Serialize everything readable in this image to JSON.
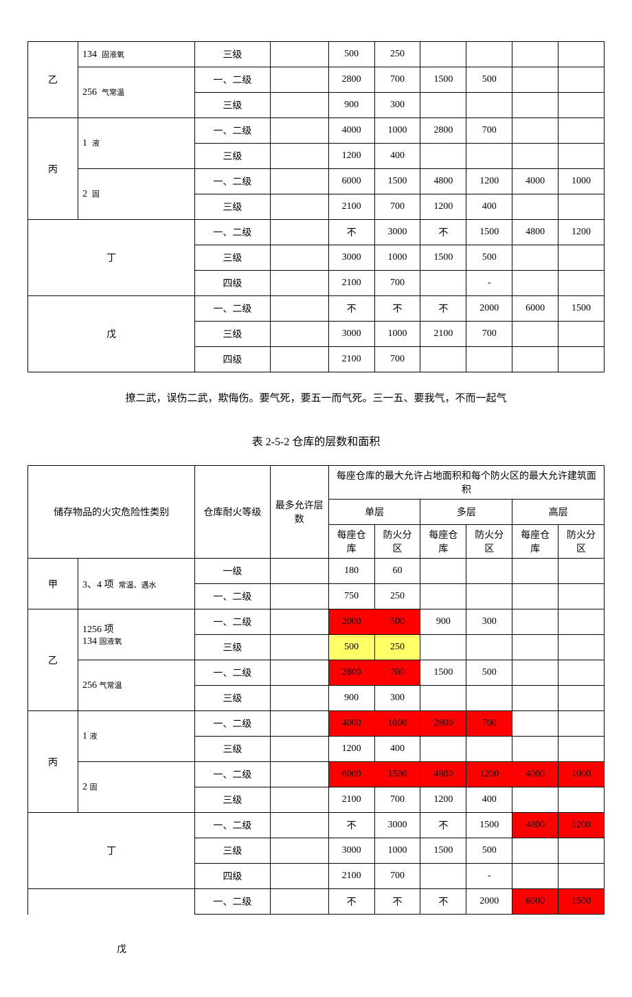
{
  "labels": {
    "yi": "乙",
    "bing": "丙",
    "ding": "丁",
    "wu": "戊",
    "jia": "甲"
  },
  "sub": {
    "s134": "134",
    "s134_sm": "固液氧",
    "s256": "256",
    "s256_sm": "气常温",
    "s1": "1",
    "s1_sm": "液",
    "s2": "2",
    "s2_sm": "固",
    "s34": "3、4 项",
    "s34_sm": "常温、遇水",
    "s1256": "1256 项"
  },
  "grade": {
    "g12": "一、二级",
    "g1": "一级",
    "g3": "三级",
    "g4": "四级"
  },
  "cell": {
    "bu": "不",
    "dash": "-"
  },
  "t1": {
    "r1": [
      "500",
      "250",
      "",
      "",
      "",
      ""
    ],
    "r2": [
      "2800",
      "700",
      "1500",
      "500",
      "",
      ""
    ],
    "r3": [
      "900",
      "300",
      "",
      "",
      "",
      ""
    ],
    "r4": [
      "4000",
      "1000",
      "2800",
      "700",
      "",
      ""
    ],
    "r5": [
      "1200",
      "400",
      "",
      "",
      "",
      ""
    ],
    "r6": [
      "6000",
      "1500",
      "4800",
      "1200",
      "4000",
      "1000"
    ],
    "r7": [
      "2100",
      "700",
      "1200",
      "400",
      "",
      ""
    ],
    "r8": [
      "不",
      "3000",
      "不",
      "1500",
      "4800",
      "1200"
    ],
    "r9": [
      "3000",
      "1000",
      "1500",
      "500",
      "",
      ""
    ],
    "r10": [
      "2100",
      "700",
      "",
      "-",
      "",
      ""
    ],
    "r11": [
      "不",
      "不",
      "不",
      "2000",
      "6000",
      "1500"
    ],
    "r12": [
      "3000",
      "1000",
      "2100",
      "700",
      "",
      ""
    ],
    "r13": [
      "2100",
      "700",
      "",
      "",
      "",
      ""
    ]
  },
  "note_text": "撩二武，误伤二武，欺侮伤。要气死，要五一而气死。三一五、要我气，不而一起气",
  "caption_text": "表 2-5-2  仓库的层数和面积",
  "hdr": {
    "class": "储存物品的火灾危险性类别",
    "fire": "仓库耐火等级",
    "floors": "最多允许层数",
    "top": "每座仓库的最大允许占地面积和每个防火区的最大允许建筑面积",
    "single": "单层",
    "multi": "多层",
    "high": "高层",
    "each": "每座仓库",
    "zone": "防火分区"
  },
  "t2": {
    "r1": [
      "180",
      "60",
      "",
      "",
      "",
      ""
    ],
    "r2": [
      "750",
      "250",
      "",
      "",
      "",
      ""
    ],
    "r3": [
      "2000",
      "500",
      "900",
      "300",
      "",
      ""
    ],
    "r4": [
      "500",
      "250",
      "",
      "",
      "",
      ""
    ],
    "r5": [
      "2800",
      "700",
      "1500",
      "500",
      "",
      ""
    ],
    "r6": [
      "900",
      "300",
      "",
      "",
      "",
      ""
    ],
    "r7": [
      "4000",
      "1000",
      "2800",
      "700",
      "",
      ""
    ],
    "r8": [
      "1200",
      "400",
      "",
      "",
      "",
      ""
    ],
    "r9": [
      "6000",
      "1500",
      "4800",
      "1200",
      "4000",
      "1000"
    ],
    "r10": [
      "2100",
      "700",
      "1200",
      "400",
      "",
      ""
    ],
    "r11": [
      "不",
      "3000",
      "不",
      "1500",
      "4800",
      "1200"
    ],
    "r12": [
      "3000",
      "1000",
      "1500",
      "500",
      "",
      ""
    ],
    "r13": [
      "2100",
      "700",
      "",
      "-",
      "",
      ""
    ],
    "r14": [
      "不",
      "不",
      "不",
      "2000",
      "6000",
      "1500"
    ]
  },
  "hl": {
    "t2_r3": [
      "red",
      "red",
      "",
      "",
      "",
      ""
    ],
    "t2_r4": [
      "yellow",
      "yellow",
      "",
      "",
      "",
      ""
    ],
    "t2_r5": [
      "red",
      "red",
      "",
      "",
      "",
      ""
    ],
    "t2_r7": [
      "red",
      "red",
      "red",
      "red",
      "",
      ""
    ],
    "t2_r9": [
      "red",
      "red",
      "red",
      "red",
      "red",
      "red"
    ],
    "t2_r11": [
      "",
      "",
      "",
      "",
      "red",
      "red"
    ],
    "t2_r14": [
      "",
      "",
      "",
      "",
      "red",
      "red"
    ]
  }
}
